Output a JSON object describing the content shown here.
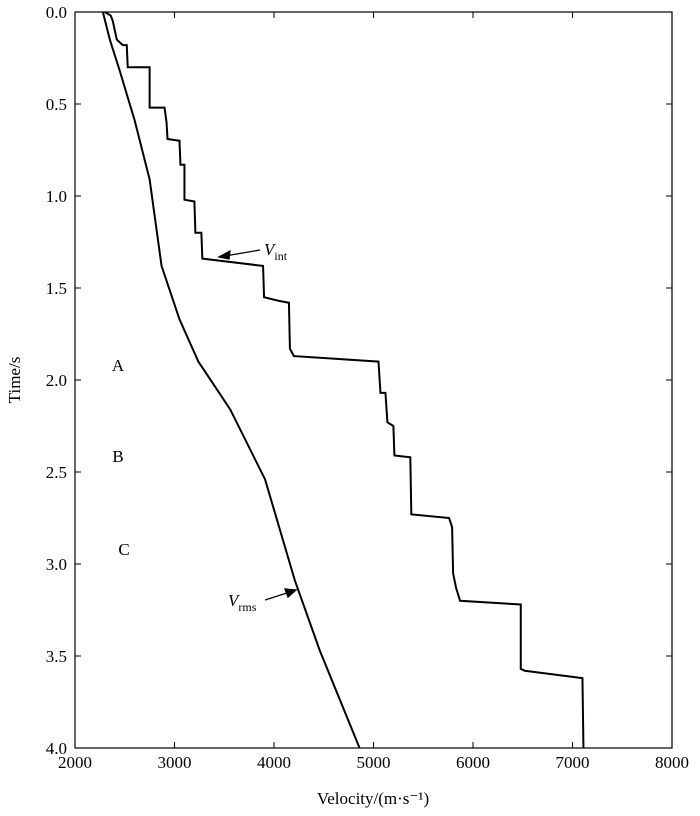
{
  "chart_data": {
    "type": "line",
    "x_label": "Velocity/(m·s⁻¹)",
    "y_label": "Time/s",
    "xlim": [
      2000,
      8000
    ],
    "xticks": [
      2000,
      3000,
      4000,
      5000,
      6000,
      7000,
      8000
    ],
    "ylim": [
      0,
      4
    ],
    "y_inverted": true,
    "yticks": [
      {
        "value": 0,
        "label": "0.0"
      },
      0.5,
      {
        "value": 1,
        "label": "1.0"
      },
      1.5,
      {
        "value": 2,
        "label": "2.0"
      },
      2.5,
      {
        "value": 3,
        "label": "3.0"
      },
      3.5,
      {
        "value": 4,
        "label": "4.0"
      }
    ],
    "series": [
      {
        "name": "int",
        "color": "#000000",
        "x": [
          2300,
          2360,
          2380,
          2420,
          2480,
          2520,
          2530,
          2750,
          2750,
          2900,
          2920,
          2930,
          3050,
          3060,
          3100,
          3100,
          3200,
          3210,
          3270,
          3280,
          3890,
          3900,
          4050,
          4150,
          4160,
          4200,
          5050,
          5070,
          5120,
          5140,
          5200,
          5210,
          5370,
          5380,
          5760,
          5790,
          5800,
          5830,
          5870,
          6480,
          6480,
          6520,
          7100,
          7110
        ],
        "values": [
          0,
          0.02,
          0.05,
          0.15,
          0.18,
          0.18,
          0.3,
          0.3,
          0.52,
          0.52,
          0.6,
          0.69,
          0.7,
          0.83,
          0.83,
          1.02,
          1.03,
          1.2,
          1.2,
          1.34,
          1.38,
          1.55,
          1.57,
          1.58,
          1.83,
          1.87,
          1.9,
          2.07,
          2.07,
          2.23,
          2.25,
          2.41,
          2.42,
          2.73,
          2.75,
          2.8,
          3.05,
          3.13,
          3.2,
          3.22,
          3.57,
          3.58,
          3.62,
          4.0
        ]
      },
      {
        "name": "rms",
        "color": "#000000",
        "x": [
          2280,
          2350,
          2450,
          2600,
          2750,
          2870,
          3050,
          3240,
          3560,
          3910,
          4210,
          4460,
          4860
        ],
        "values": [
          0,
          0.15,
          0.32,
          0.59,
          0.91,
          1.38,
          1.67,
          1.9,
          2.16,
          2.54,
          3.09,
          3.47,
          4.0
        ]
      }
    ],
    "annotations": [
      "A",
      "B",
      "C"
    ],
    "series_label_symbol": "V"
  }
}
